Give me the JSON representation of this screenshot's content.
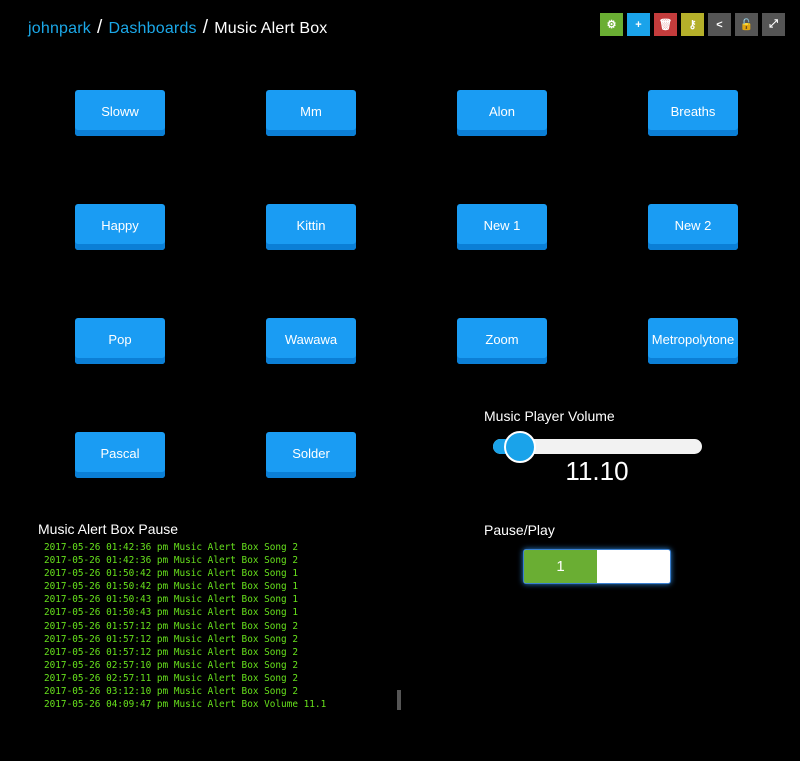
{
  "breadcrumb": [
    "johnpark",
    "Dashboards",
    "Music Alert Box"
  ],
  "toolbar": [
    {
      "icon": "gear-icon",
      "color": "#6aae33",
      "glyph": "⚙"
    },
    {
      "icon": "plus-icon",
      "color": "#1aa3ea",
      "glyph": "+"
    },
    {
      "icon": "trash-icon",
      "color": "#c43c3c",
      "glyph": "🗑"
    },
    {
      "icon": "key-icon",
      "color": "#b5b02a",
      "glyph": "⚷"
    },
    {
      "icon": "share-icon",
      "color": "#555555",
      "glyph": "<"
    },
    {
      "icon": "unlock-icon",
      "color": "#555555",
      "glyph": "🔓"
    },
    {
      "icon": "expand-icon",
      "color": "#555555",
      "glyph": "⤢"
    }
  ],
  "buttons": [
    "Sloww",
    "Mm",
    "Alon",
    "Breaths",
    "Happy",
    "Kittin",
    "New 1",
    "New 2",
    "Pop",
    "Wawawa",
    "Zoom",
    "Metropolytone",
    "Pascal",
    "Solder"
  ],
  "volume": {
    "title": "Music Player Volume",
    "value": "11.10",
    "fraction": 0.111
  },
  "pause": {
    "title": "Pause/Play",
    "value": "1",
    "on": true
  },
  "log": {
    "title": "Music Alert Box Pause",
    "lines": [
      "2017-05-26 01:42:36 pm Music Alert Box Song 2",
      "2017-05-26 01:42:36 pm Music Alert Box Song 2",
      "2017-05-26 01:50:42 pm Music Alert Box Song 1",
      "2017-05-26 01:50:42 pm Music Alert Box Song 1",
      "2017-05-26 01:50:43 pm Music Alert Box Song 1",
      "2017-05-26 01:50:43 pm Music Alert Box Song 1",
      "2017-05-26 01:57:12 pm Music Alert Box Song 2",
      "2017-05-26 01:57:12 pm Music Alert Box Song 2",
      "2017-05-26 01:57:12 pm Music Alert Box Song 2",
      "2017-05-26 02:57:10 pm Music Alert Box Song 2",
      "2017-05-26 02:57:11 pm Music Alert Box Song 2",
      "2017-05-26 03:12:10 pm Music Alert Box Song 2",
      "2017-05-26 04:09:47 pm Music Alert Box Volume 11.1"
    ]
  }
}
